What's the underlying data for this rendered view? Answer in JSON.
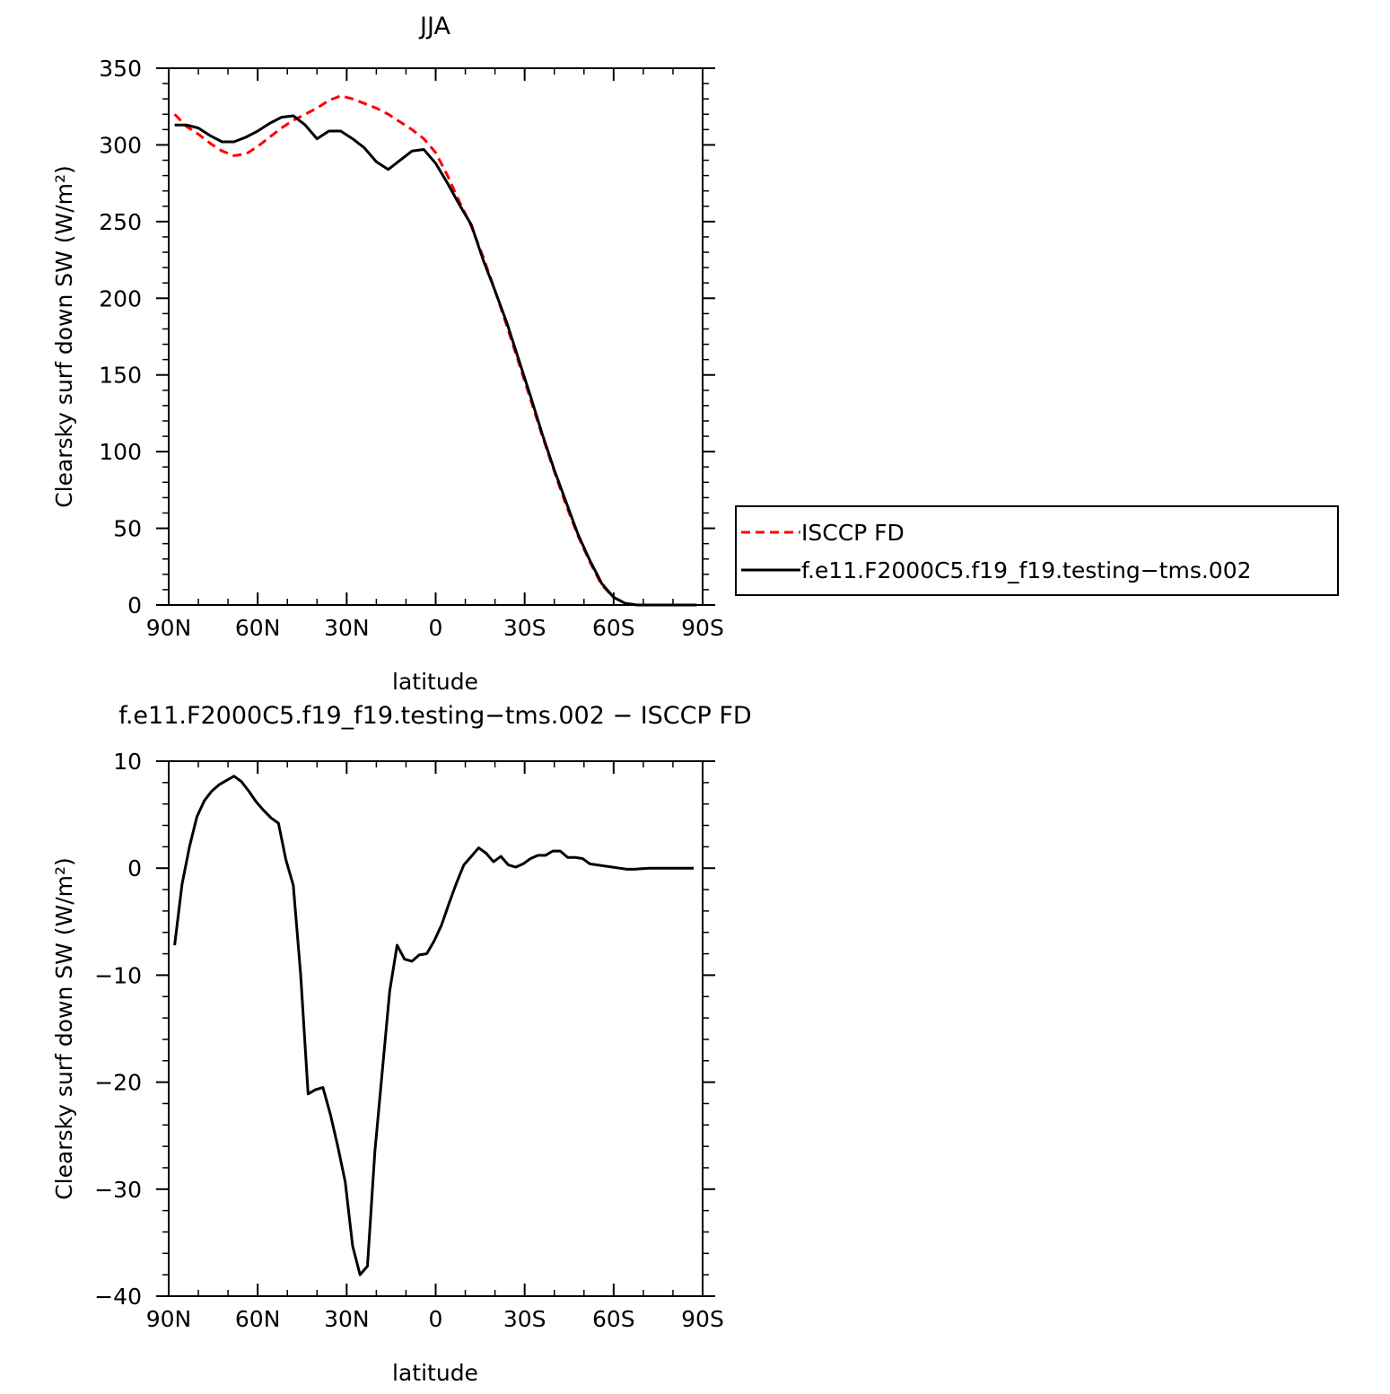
{
  "chart_data": [
    {
      "type": "line",
      "title": "JJA",
      "xlabel": "latitude",
      "ylabel": "Clearsky surf down SW (W/m²)",
      "xlim": [
        90,
        -90
      ],
      "ylim": [
        0,
        350
      ],
      "xticks": [
        {
          "value": 90,
          "label": "90N"
        },
        {
          "value": 60,
          "label": "60N"
        },
        {
          "value": 30,
          "label": "30N"
        },
        {
          "value": 0,
          "label": "0"
        },
        {
          "value": -30,
          "label": "30S"
        },
        {
          "value": -60,
          "label": "60S"
        },
        {
          "value": -90,
          "label": "90S"
        }
      ],
      "yticks": [
        0,
        50,
        100,
        150,
        200,
        250,
        300,
        350
      ],
      "legend_position": "right",
      "series": [
        {
          "name": "ISCCP FD",
          "color": "#ff0000",
          "style": "dashed",
          "x": [
            88,
            84,
            80,
            76,
            72,
            68,
            64,
            60,
            56,
            52,
            48,
            44,
            40,
            36,
            32,
            28,
            24,
            20,
            16,
            12,
            8,
            4,
            0,
            -4,
            -8,
            -12,
            -16,
            -20,
            -24,
            -28,
            -32,
            -36,
            -40,
            -44,
            -48,
            -52,
            -56,
            -60,
            -64,
            -68,
            -72,
            -76,
            -80,
            -84,
            -88
          ],
          "y": [
            320,
            312,
            307,
            301,
            296,
            293,
            294,
            299,
            305,
            311,
            316,
            320,
            324,
            329,
            332,
            330,
            327,
            324,
            320,
            315,
            310,
            304,
            295,
            280,
            263,
            247,
            227,
            205,
            182,
            158,
            134,
            110,
            87,
            65,
            45,
            28,
            13,
            5,
            1,
            0,
            0,
            0,
            0,
            0,
            0
          ]
        },
        {
          "name": "f.e11.F2000C5.f19_f19.testing−tms.002",
          "color": "#000000",
          "style": "solid",
          "x": [
            88,
            84,
            80,
            76,
            72,
            68,
            64,
            60,
            56,
            52,
            48,
            44,
            40,
            36,
            32,
            28,
            24,
            20,
            16,
            12,
            8,
            4,
            0,
            -4,
            -8,
            -12,
            -16,
            -20,
            -24,
            -28,
            -32,
            -36,
            -40,
            -44,
            -48,
            -52,
            -56,
            -60,
            -64,
            -68,
            -72,
            -76,
            -80,
            -84,
            -88
          ],
          "y": [
            313,
            313,
            311,
            306,
            302,
            302,
            305,
            309,
            314,
            318,
            319,
            313,
            304,
            309,
            309,
            304,
            298,
            289,
            284,
            290,
            296,
            297,
            288,
            275,
            261,
            248,
            225,
            205,
            184,
            160,
            136,
            111,
            88,
            67,
            46,
            29,
            14,
            5,
            1,
            0,
            0,
            0,
            0,
            0,
            0
          ]
        }
      ]
    },
    {
      "type": "line",
      "title": "f.e11.F2000C5.f19_f19.testing−tms.002 − ISCCP FD",
      "xlabel": "latitude",
      "ylabel": "Clearsky surf down SW (W/m²)",
      "xlim": [
        90,
        -90
      ],
      "ylim": [
        -40,
        10
      ],
      "xticks": [
        {
          "value": 90,
          "label": "90N"
        },
        {
          "value": 60,
          "label": "60N"
        },
        {
          "value": 30,
          "label": "30N"
        },
        {
          "value": 0,
          "label": "0"
        },
        {
          "value": -30,
          "label": "30S"
        },
        {
          "value": -60,
          "label": "60S"
        },
        {
          "value": -90,
          "label": "90S"
        }
      ],
      "yticks": [
        10,
        0,
        -10,
        -20,
        -30,
        -40
      ],
      "series": [
        {
          "color": "#000000",
          "style": "solid",
          "x": [
            88,
            85.5,
            83,
            80.5,
            78,
            75.5,
            73,
            70.5,
            68,
            65.5,
            63,
            60.5,
            58,
            55.5,
            53,
            50.5,
            48,
            45.5,
            43,
            40.5,
            38,
            35.5,
            33,
            30.5,
            28,
            25.5,
            23,
            20.5,
            18,
            15.5,
            13,
            10.5,
            8,
            5.5,
            3,
            0.5,
            -2,
            -4.5,
            -7,
            -9.5,
            -12,
            -14.5,
            -17,
            -19.5,
            -22,
            -24.5,
            -27,
            -29.5,
            -32,
            -34.5,
            -37,
            -39.5,
            -42,
            -44.5,
            -47,
            -49.5,
            -52,
            -54.5,
            -57,
            -59.5,
            -62,
            -64.5,
            -67,
            -69.5,
            -72,
            -74.5,
            -77,
            -79.5,
            -82,
            -84.5,
            -87
          ],
          "y": [
            -7.2,
            -1.5,
            2,
            4.8,
            6.3,
            7.2,
            7.8,
            8.2,
            8.6,
            8.1,
            7.2,
            6.2,
            5.4,
            4.7,
            4.2,
            0.8,
            -1.6,
            -10,
            -21.1,
            -20.7,
            -20.5,
            -23,
            -26,
            -29.3,
            -35.3,
            -38,
            -37.2,
            -26.5,
            -19,
            -11.5,
            -7.2,
            -8.5,
            -8.7,
            -8.1,
            -8,
            -6.8,
            -5.3,
            -3.3,
            -1.4,
            0.3,
            1.1,
            1.9,
            1.4,
            0.6,
            1.1,
            0.3,
            0.1,
            0.4,
            0.9,
            1.2,
            1.2,
            1.6,
            1.6,
            1.0,
            1.0,
            0.9,
            0.4,
            0.3,
            0.2,
            0.1,
            0.0,
            -0.1,
            -0.1,
            -0.05,
            0.0,
            0.0,
            0.0,
            0.0,
            0.0,
            0.0,
            0.0
          ]
        }
      ]
    }
  ]
}
